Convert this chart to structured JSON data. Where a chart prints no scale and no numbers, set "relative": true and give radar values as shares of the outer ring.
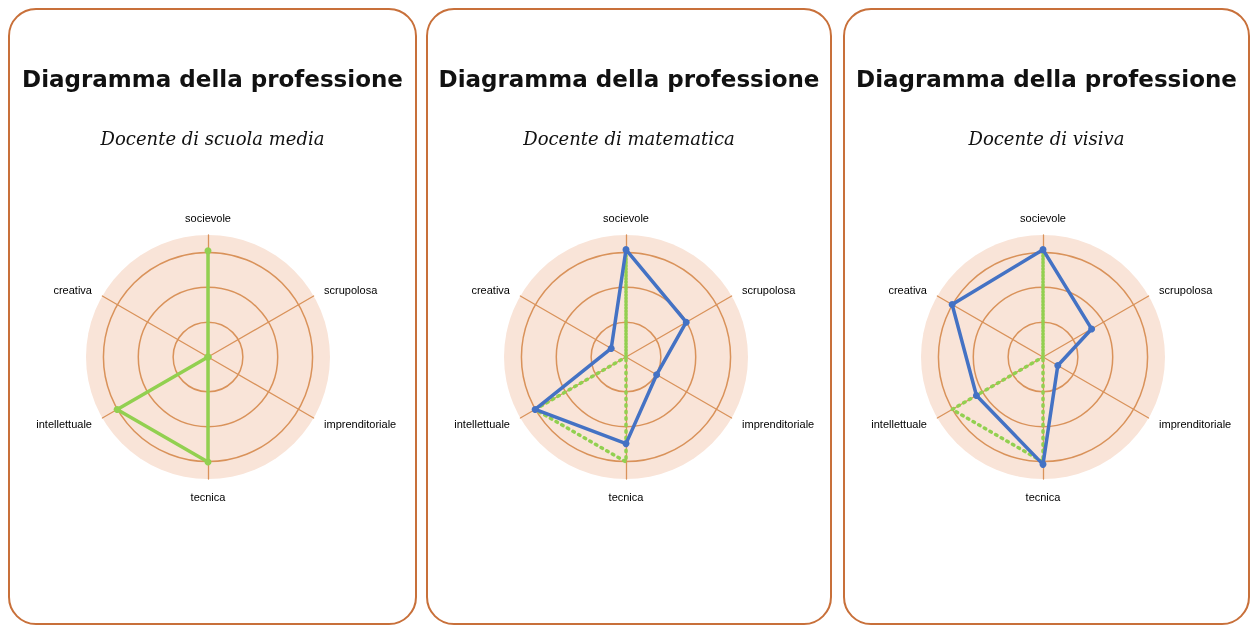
{
  "chart_data": [
    {
      "type": "radar",
      "title": "Diagramma della professione",
      "subtitle": "Docente di scuola media",
      "categories": [
        "socievole",
        "scrupolosa",
        "imprenditoriale",
        "tecnica",
        "intellettuale",
        "creativa"
      ],
      "relative": true,
      "marker": "circle",
      "series": [
        {
          "color": "#92d050",
          "values": [
            0.87,
            null,
            null,
            0.86,
            0.86,
            null
          ]
        }
      ]
    },
    {
      "type": "radar",
      "title": "Diagramma della professione",
      "subtitle": "Docente di matematica",
      "categories": [
        "socievole",
        "scrupolosa",
        "imprenditoriale",
        "tecnica",
        "intellettuale",
        "creativa"
      ],
      "relative": true,
      "series": [
        {
          "color": "#92d050",
          "line_style": "dotted",
          "marker": "none",
          "values": [
            0.86,
            null,
            null,
            0.86,
            0.86,
            null
          ]
        },
        {
          "color": "#4472c4",
          "marker": "circle",
          "values": [
            0.88,
            0.57,
            0.29,
            0.71,
            0.86,
            0.14
          ]
        }
      ]
    },
    {
      "type": "radar",
      "title": "Diagramma della professione",
      "subtitle": "Docente di visiva",
      "categories": [
        "socievole",
        "scrupolosa",
        "imprenditoriale",
        "tecnica",
        "intellettuale",
        "creativa"
      ],
      "relative": true,
      "series": [
        {
          "color": "#92d050",
          "line_style": "dotted",
          "marker": "none",
          "values": [
            0.86,
            null,
            null,
            0.86,
            0.86,
            null
          ]
        },
        {
          "color": "#4472c4",
          "marker": "circle",
          "values": [
            0.88,
            0.46,
            0.14,
            0.88,
            0.63,
            0.86
          ]
        }
      ]
    }
  ]
}
